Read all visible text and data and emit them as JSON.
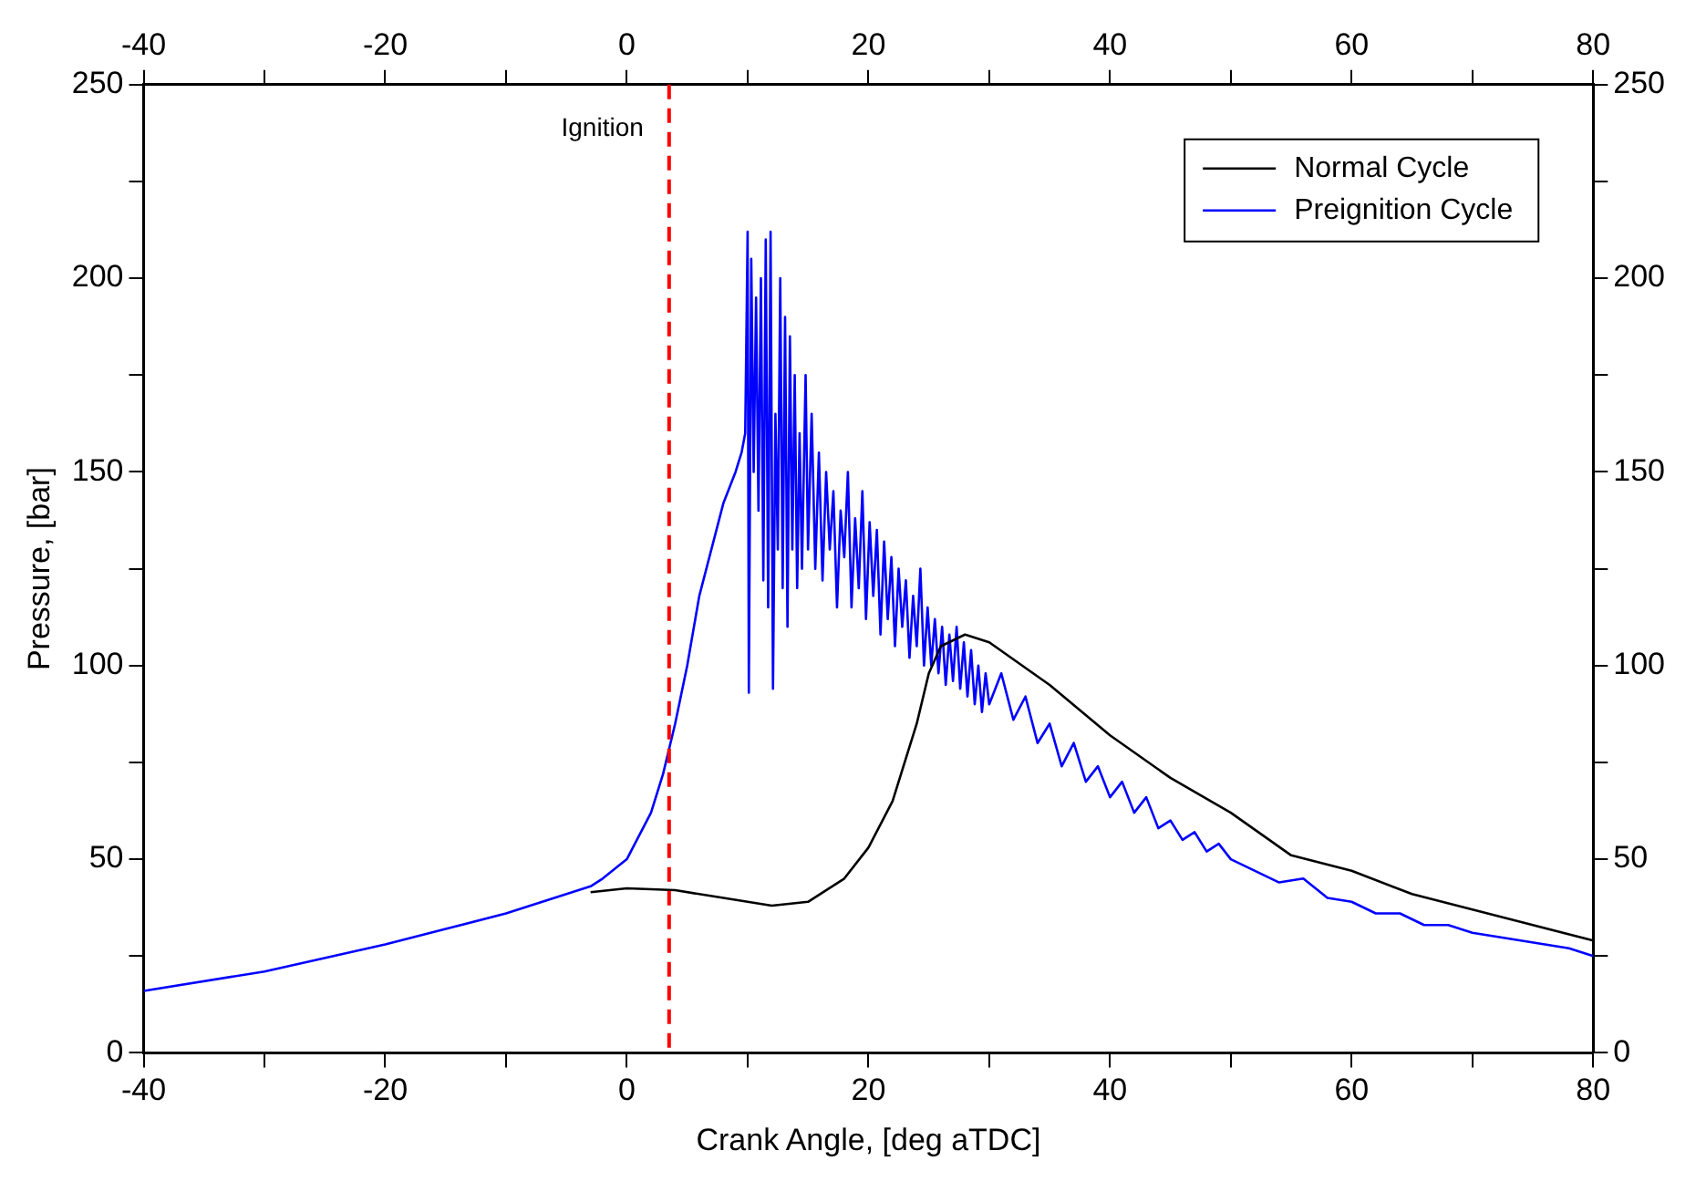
{
  "chart_data": {
    "type": "line",
    "xlabel": "Crank Angle, [deg aTDC]",
    "ylabel": "Pressure, [bar]",
    "xlim": [
      -40,
      80
    ],
    "xticks": [
      -40,
      {
        "value": -30,
        "label": null
      },
      -20,
      {
        "value": -10,
        "label": null
      },
      0,
      {
        "value": 10,
        "label": null
      },
      20,
      {
        "value": 30,
        "label": null
      },
      40,
      {
        "value": 50,
        "label": null
      },
      60,
      {
        "value": 70,
        "label": null
      },
      80
    ],
    "x2lim": [
      -40,
      80
    ],
    "x2ticks": [
      -40,
      {
        "value": -30,
        "label": null
      },
      -20,
      {
        "value": -10,
        "label": null
      },
      0,
      {
        "value": 10,
        "label": null
      },
      20,
      {
        "value": 30,
        "label": null
      },
      40,
      {
        "value": 50,
        "label": null
      },
      60,
      {
        "value": 70,
        "label": null
      },
      80
    ],
    "ylim": [
      0,
      250
    ],
    "yticks": [
      0,
      {
        "value": 25,
        "label": null
      },
      50,
      {
        "value": 75,
        "label": null
      },
      100,
      {
        "value": 125,
        "label": null
      },
      150,
      {
        "value": 175,
        "label": null
      },
      200,
      {
        "value": 225,
        "label": null
      },
      250
    ],
    "y2lim": [
      0,
      250
    ],
    "y2ticks": [
      0,
      {
        "value": 25,
        "label": null
      },
      50,
      {
        "value": 75,
        "label": null
      },
      100,
      {
        "value": 125,
        "label": null
      },
      150,
      {
        "value": 175,
        "label": null
      },
      200,
      {
        "value": 225,
        "label": null
      },
      250
    ],
    "grid": false,
    "legend": "top right",
    "marker": "none",
    "line_style": "solid",
    "ref_lines": [
      {
        "axis": "x",
        "value": 3.5,
        "label": "Ignition",
        "color": "#ff0000",
        "line_style": "dashed"
      }
    ],
    "series": [
      {
        "name": "Normal Cycle",
        "color": "#000000",
        "x": [
          -3,
          0,
          4,
          8,
          12,
          15,
          18,
          20,
          22,
          24,
          25,
          26,
          28,
          30,
          35,
          40,
          45,
          50,
          55,
          60,
          65,
          70,
          75,
          80
        ],
        "values": [
          41.5,
          42.5,
          42,
          40,
          38,
          39,
          45,
          53,
          65,
          85,
          98,
          105,
          108,
          106,
          95,
          82,
          71,
          62,
          51,
          47,
          41,
          37,
          33,
          29
        ]
      },
      {
        "name": "Preignition Cycle",
        "color": "#0000ff",
        "x": [
          -40,
          -30,
          -20,
          -10,
          -5,
          -3,
          -2,
          0,
          2,
          3,
          4,
          5,
          6,
          7,
          8,
          9,
          9.5,
          9.8,
          10.0,
          10.1,
          10.3,
          10.5,
          10.7,
          10.9,
          11.1,
          11.3,
          11.5,
          11.7,
          11.9,
          12.1,
          12.3,
          12.5,
          12.7,
          12.9,
          13.1,
          13.3,
          13.5,
          13.7,
          13.9,
          14.1,
          14.3,
          14.5,
          14.8,
          15.0,
          15.3,
          15.6,
          15.9,
          16.2,
          16.5,
          16.8,
          17.1,
          17.4,
          17.7,
          18.0,
          18.3,
          18.6,
          18.9,
          19.2,
          19.5,
          19.8,
          20.1,
          20.4,
          20.7,
          21.0,
          21.3,
          21.6,
          21.9,
          22.2,
          22.5,
          22.8,
          23.1,
          23.4,
          23.7,
          24.0,
          24.3,
          24.6,
          24.9,
          25.2,
          25.5,
          25.8,
          26.1,
          26.4,
          26.7,
          27.0,
          27.3,
          27.6,
          27.9,
          28.2,
          28.5,
          28.8,
          29.1,
          29.4,
          29.7,
          30,
          31,
          32,
          33,
          34,
          35,
          36,
          37,
          38,
          39,
          40,
          41,
          42,
          43,
          44,
          45,
          46,
          47,
          48,
          49,
          50,
          52,
          54,
          56,
          58,
          60,
          62,
          64,
          66,
          68,
          70,
          72,
          74,
          76,
          78,
          80
        ],
        "values": [
          16,
          21,
          28,
          36,
          41,
          43,
          45,
          50,
          62,
          72,
          85,
          100,
          118,
          130,
          142,
          150,
          155,
          160,
          212,
          93,
          205,
          150,
          195,
          140,
          200,
          122,
          210,
          115,
          212,
          94,
          165,
          130,
          200,
          120,
          190,
          110,
          185,
          130,
          175,
          120,
          160,
          125,
          175,
          130,
          165,
          125,
          155,
          122,
          150,
          130,
          145,
          115,
          140,
          128,
          150,
          115,
          138,
          120,
          145,
          112,
          137,
          118,
          135,
          108,
          132,
          112,
          128,
          105,
          125,
          110,
          122,
          102,
          118,
          105,
          125,
          100,
          115,
          100,
          112,
          98,
          110,
          95,
          108,
          96,
          110,
          94,
          106,
          92,
          104,
          90,
          100,
          88,
          98,
          90,
          98,
          86,
          92,
          80,
          85,
          74,
          80,
          70,
          74,
          66,
          70,
          62,
          66,
          58,
          60,
          55,
          57,
          52,
          54,
          50,
          47,
          44,
          45,
          40,
          39,
          36,
          36,
          33,
          33,
          31,
          30,
          29,
          28,
          27,
          25
        ]
      }
    ]
  }
}
